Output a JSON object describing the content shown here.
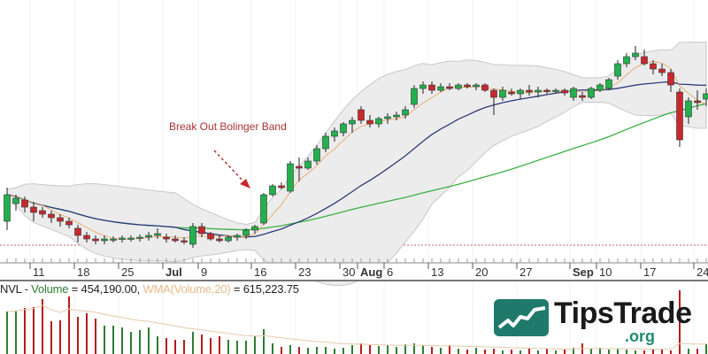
{
  "chart_data": {
    "type": "candlestick",
    "title": "",
    "annotation": "Break Out Bolinger Band",
    "x_tick_labels": [
      {
        "label": "11",
        "index": 3
      },
      {
        "label": "18",
        "index": 8
      },
      {
        "label": "25",
        "index": 13
      },
      {
        "label": "Jul",
        "index": 18,
        "bold": true
      },
      {
        "label": "9",
        "index": 22
      },
      {
        "label": "16",
        "index": 28
      },
      {
        "label": "23",
        "index": 33
      },
      {
        "label": "30",
        "index": 38
      },
      {
        "label": "Aug",
        "index": 40,
        "bold": true
      },
      {
        "label": "6",
        "index": 43
      },
      {
        "label": "13",
        "index": 48
      },
      {
        "label": "20",
        "index": 53
      },
      {
        "label": "27",
        "index": 58
      },
      {
        "label": "Sep",
        "index": 64,
        "bold": true
      },
      {
        "label": "10",
        "index": 67
      },
      {
        "label": "17",
        "index": 72
      },
      {
        "label": "24",
        "index": 78
      }
    ],
    "candles_ohlc": [
      [
        50,
        88,
        40,
        80
      ],
      [
        70,
        80,
        62,
        76
      ],
      [
        74,
        78,
        60,
        66
      ],
      [
        66,
        72,
        50,
        60
      ],
      [
        62,
        66,
        54,
        58
      ],
      [
        58,
        62,
        48,
        54
      ],
      [
        54,
        58,
        44,
        50
      ],
      [
        50,
        54,
        42,
        46
      ],
      [
        42,
        46,
        26,
        34
      ],
      [
        34,
        38,
        26,
        30
      ],
      [
        30,
        34,
        24,
        28
      ],
      [
        28,
        34,
        24,
        30
      ],
      [
        29,
        33,
        26,
        30
      ],
      [
        30,
        34,
        26,
        31
      ],
      [
        30,
        34,
        27,
        31
      ],
      [
        31,
        35,
        27,
        32
      ],
      [
        32,
        38,
        28,
        34
      ],
      [
        34,
        42,
        30,
        36
      ],
      [
        32,
        36,
        26,
        30
      ],
      [
        30,
        34,
        26,
        28
      ],
      [
        28,
        32,
        24,
        27
      ],
      [
        24,
        48,
        20,
        44
      ],
      [
        44,
        48,
        32,
        36
      ],
      [
        36,
        38,
        28,
        30
      ],
      [
        30,
        34,
        26,
        28
      ],
      [
        28,
        34,
        26,
        32
      ],
      [
        32,
        36,
        28,
        34
      ],
      [
        34,
        42,
        30,
        40
      ],
      [
        40,
        46,
        36,
        44
      ],
      [
        48,
        82,
        46,
        80
      ],
      [
        80,
        92,
        78,
        90
      ],
      [
        90,
        94,
        86,
        88
      ],
      [
        84,
        118,
        82,
        115
      ],
      [
        112,
        122,
        95,
        110
      ],
      [
        110,
        122,
        108,
        118
      ],
      [
        118,
        136,
        114,
        132
      ],
      [
        132,
        150,
        128,
        146
      ],
      [
        146,
        156,
        140,
        152
      ],
      [
        150,
        162,
        146,
        160
      ],
      [
        160,
        168,
        150,
        164
      ],
      [
        176,
        180,
        160,
        164
      ],
      [
        164,
        170,
        156,
        160
      ],
      [
        160,
        168,
        156,
        166
      ],
      [
        166,
        172,
        160,
        168
      ],
      [
        168,
        174,
        164,
        170
      ],
      [
        170,
        180,
        166,
        176
      ],
      [
        182,
        204,
        178,
        200
      ],
      [
        200,
        208,
        194,
        204
      ],
      [
        204,
        208,
        194,
        198
      ],
      [
        198,
        206,
        196,
        202
      ],
      [
        202,
        206,
        198,
        200
      ],
      [
        200,
        206,
        198,
        204
      ],
      [
        204,
        206,
        200,
        202
      ],
      [
        202,
        206,
        198,
        204
      ],
      [
        204,
        206,
        196,
        198
      ],
      [
        198,
        200,
        170,
        190
      ],
      [
        190,
        202,
        186,
        198
      ],
      [
        196,
        200,
        192,
        194
      ],
      [
        194,
        200,
        188,
        198
      ],
      [
        198,
        204,
        192,
        196
      ],
      [
        196,
        202,
        190,
        198
      ],
      [
        198,
        200,
        194,
        197
      ],
      [
        197,
        200,
        194,
        198
      ],
      [
        198,
        200,
        192,
        195
      ],
      [
        190,
        202,
        186,
        200
      ],
      [
        192,
        196,
        186,
        190
      ],
      [
        190,
        202,
        188,
        200
      ],
      [
        198,
        206,
        196,
        204
      ],
      [
        200,
        212,
        198,
        210
      ],
      [
        214,
        232,
        210,
        228
      ],
      [
        228,
        240,
        224,
        236
      ],
      [
        236,
        248,
        232,
        240
      ],
      [
        236,
        244,
        226,
        228
      ],
      [
        228,
        232,
        216,
        222
      ],
      [
        222,
        228,
        214,
        218
      ],
      [
        218,
        222,
        196,
        204
      ],
      [
        196,
        200,
        134,
        142
      ],
      [
        168,
        190,
        160,
        186
      ],
      [
        186,
        198,
        176,
        184
      ],
      [
        188,
        200,
        180,
        194
      ]
    ],
    "volume": [
      1968000,
      2009000,
      2132000,
      2173000,
      2542000,
      1517000,
      1558000,
      2665000,
      1722000,
      1886000,
      1640000,
      1312000,
      1312000,
      1230000,
      1025000,
      1107000,
      1230000,
      820000,
      738000,
      656000,
      656000,
      1025000,
      902000,
      738000,
      820000,
      656000,
      615000,
      615000,
      820000,
      1148000,
      492000,
      328000,
      410000,
      328000,
      287000,
      328000,
      328000,
      246000,
      287000,
      410000,
      492000,
      410000,
      369000,
      410000,
      328000,
      451000,
      492000,
      410000,
      328000,
      287000,
      410000,
      246000,
      205000,
      287000,
      205000,
      246000,
      164000,
      205000,
      164000,
      246000,
      164000,
      246000,
      164000,
      205000,
      287000,
      492000,
      246000,
      287000,
      205000,
      246000,
      205000,
      164000,
      164000,
      205000,
      205000,
      164000,
      2952000,
      246000,
      246000,
      454190
    ],
    "indicators": [
      "Bollinger Bands (20)",
      "WMA(Volume,20)"
    ],
    "grid": true
  },
  "volume_panel": {
    "symbol": "NVL",
    "sep": " - ",
    "volume_label": "Volume",
    "volume_value": " = 454,190.00, ",
    "wma_label": "WMA(Volume,20)",
    "wma_value": " = 615,223.75"
  },
  "logo": {
    "name": "TipsTrade",
    "suffix": ".org"
  },
  "colors": {
    "up": "#22b14c",
    "down": "#c8282e",
    "band_fill": "#ececec",
    "band_edge": "#c8c8c8",
    "mid": "#2d3a7a",
    "long_ma": "#3cb043",
    "short_ma": "#e8a25a",
    "vol_up": "#2e7d32",
    "vol_down": "#b71c1c",
    "wma": "#e8c9a8"
  }
}
